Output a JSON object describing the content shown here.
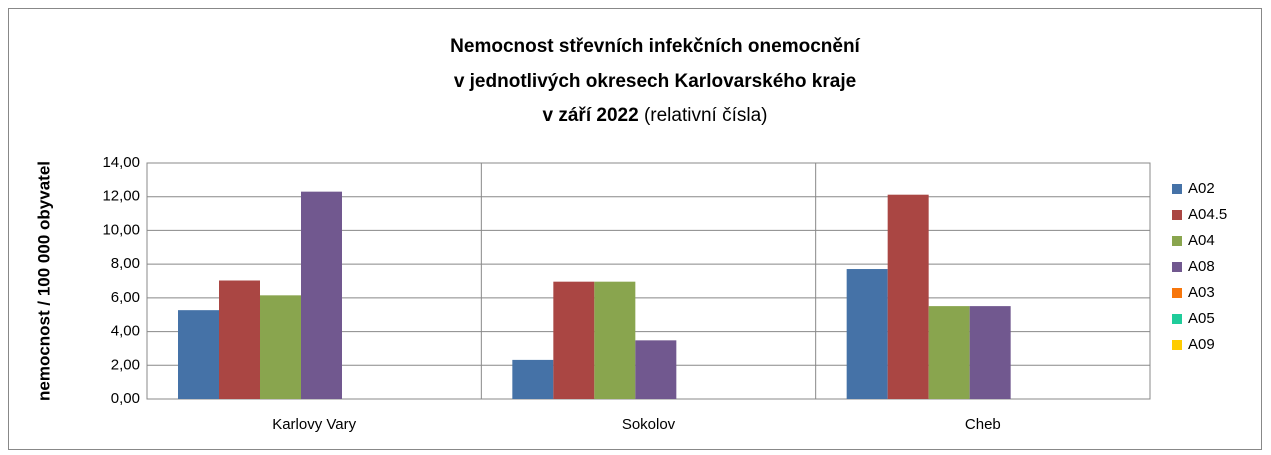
{
  "chart_data": {
    "type": "bar",
    "title": [
      "Nemocnost střevních infekčních onemocnění",
      "v jednotlivých okresech Karlovarského kraje",
      "v září 2022"
    ],
    "subtitle": "(relativní čísla)",
    "y_label": "nemocnost / 100 000 obyvatel",
    "categories": [
      "Karlovy Vary",
      "Sokolov",
      "Cheb"
    ],
    "series": [
      {
        "name": "A02",
        "color": "#4572a7",
        "values": [
          5.27,
          2.32,
          7.71
        ]
      },
      {
        "name": "A04.5",
        "color": "#aa4643",
        "values": [
          7.03,
          6.96,
          12.12
        ]
      },
      {
        "name": "A04",
        "color": "#89a54e",
        "values": [
          6.15,
          6.96,
          5.51
        ]
      },
      {
        "name": "A08",
        "color": "#71588f",
        "values": [
          12.3,
          3.48,
          5.51
        ]
      },
      {
        "name": "A03",
        "color": "#f7760b",
        "values": [
          0,
          0,
          0
        ]
      },
      {
        "name": "A05",
        "color": "#1fcc9a",
        "values": [
          0,
          0,
          0
        ]
      },
      {
        "name": "A09",
        "color": "#ffcc00",
        "values": [
          0,
          0,
          0
        ]
      }
    ],
    "ylim": [
      0,
      14
    ],
    "yticks": [
      {
        "value": 0,
        "label": "0,00"
      },
      {
        "value": 2,
        "label": "2,00"
      },
      {
        "value": 4,
        "label": "4,00"
      },
      {
        "value": 6,
        "label": "6,00"
      },
      {
        "value": 8,
        "label": "8,00"
      },
      {
        "value": 10,
        "label": "10,00"
      },
      {
        "value": 12,
        "label": "12,00"
      },
      {
        "value": 14,
        "label": "14,00"
      }
    ],
    "grid": true,
    "legend": "right"
  }
}
